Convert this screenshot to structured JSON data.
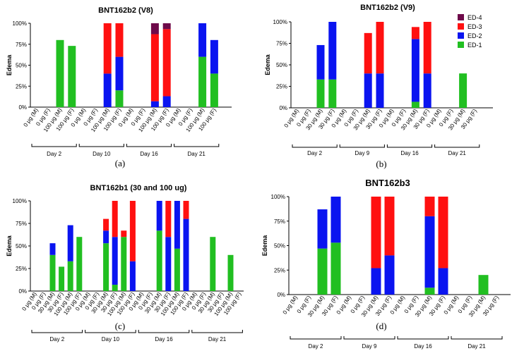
{
  "colors": {
    "ED-1": "#21bf21",
    "ED-2": "#0a14f0",
    "ED-3": "#ff1010",
    "ED-4": "#6e0a4a"
  },
  "chart_data": [
    {
      "type": "bar",
      "stacked": true,
      "title": "BNT162b2 (V8)",
      "ylabel": "Edema",
      "yticks": [
        "0%",
        "25%",
        "50%",
        "75%",
        "100%"
      ],
      "ylim": [
        0,
        100
      ],
      "categories": [
        "0 μg (M)",
        "0 μg (F)",
        "100 μg (M)",
        "100 μg (F)",
        "0 μg (M)",
        "0 μg (F)",
        "100 μg (M)",
        "100 μg (F)",
        "0 μg (M)",
        "0 μg (F)",
        "100 μg (M)",
        "100 μg (F)",
        "0 μg (M)",
        "0 μg (F)",
        "100 μg (M)",
        "100 μg (F)"
      ],
      "groups": [
        {
          "label": "Day 2",
          "start": 0,
          "end": 3
        },
        {
          "label": "Day 10",
          "start": 4,
          "end": 7
        },
        {
          "label": "Day 16",
          "start": 8,
          "end": 11
        },
        {
          "label": "Day 21",
          "start": 12,
          "end": 15
        }
      ],
      "series": [
        {
          "name": "ED-1",
          "values": [
            0,
            0,
            80,
            73,
            0,
            0,
            0,
            20,
            0,
            0,
            0,
            0,
            0,
            0,
            60,
            40
          ]
        },
        {
          "name": "ED-2",
          "values": [
            0,
            0,
            0,
            0,
            0,
            0,
            40,
            40,
            0,
            0,
            7,
            13,
            0,
            0,
            40,
            40
          ]
        },
        {
          "name": "ED-3",
          "values": [
            0,
            0,
            0,
            0,
            0,
            0,
            60,
            40,
            0,
            0,
            80,
            80,
            0,
            0,
            0,
            0
          ]
        },
        {
          "name": "ED-4",
          "values": [
            0,
            0,
            0,
            0,
            0,
            0,
            0,
            0,
            0,
            0,
            13,
            7,
            0,
            0,
            0,
            0
          ]
        }
      ],
      "caption": "(a)"
    },
    {
      "type": "bar",
      "stacked": true,
      "title": "BNT162b2 (V9)",
      "ylabel": "Edema",
      "yticks": [
        "0%",
        "25%",
        "50%",
        "75%",
        "100%"
      ],
      "ylim": [
        0,
        100
      ],
      "categories": [
        "0 μg (M)",
        "0 μg (F)",
        "30 μg (M)",
        "30 μg (F)",
        "0 μg (M)",
        "0 μg (F)",
        "30 μg (M)",
        "30 μg (F)",
        "0 μg (M)",
        "0 μg (F)",
        "30 μg (M)",
        "30 μg (F)",
        "0 μg (M)",
        "0 μg (F)",
        "30 μg (M)",
        "30 μg (F)"
      ],
      "groups": [
        {
          "label": "Day 2",
          "start": 0,
          "end": 3
        },
        {
          "label": "Day 9",
          "start": 4,
          "end": 7
        },
        {
          "label": "Day 16",
          "start": 8,
          "end": 11
        },
        {
          "label": "Day 21",
          "start": 12,
          "end": 15
        }
      ],
      "series": [
        {
          "name": "ED-1",
          "values": [
            0,
            0,
            33,
            33,
            0,
            0,
            0,
            0,
            0,
            0,
            7,
            0,
            0,
            0,
            40,
            0
          ]
        },
        {
          "name": "ED-2",
          "values": [
            0,
            0,
            40,
            67,
            0,
            0,
            40,
            40,
            0,
            0,
            73,
            40,
            0,
            0,
            0,
            0
          ]
        },
        {
          "name": "ED-3",
          "values": [
            0,
            0,
            0,
            0,
            0,
            0,
            47,
            60,
            0,
            0,
            14,
            60,
            0,
            0,
            0,
            0
          ]
        },
        {
          "name": "ED-4",
          "values": [
            0,
            0,
            0,
            0,
            0,
            0,
            0,
            0,
            0,
            0,
            0,
            0,
            0,
            0,
            0,
            0
          ]
        }
      ],
      "legend": [
        "ED-4",
        "ED-3",
        "ED-2",
        "ED-1"
      ],
      "caption": "(b)"
    },
    {
      "type": "bar",
      "stacked": true,
      "title": "BNT162b1 (30 and 100 ug)",
      "ylabel": "Edema",
      "yticks": [
        "0%",
        "25%",
        "50%",
        "75%",
        "100%"
      ],
      "ylim": [
        0,
        100
      ],
      "categories": [
        "0 μg (M)",
        "0 μg (F)",
        "30 μg (M)",
        "30 μg (F)",
        "100 μg (M)",
        "100 μg (F)",
        "0 μg (M)",
        "0 μg (F)",
        "30 μg (M)",
        "30 μg (F)",
        "100 μg (M)",
        "100 μg (F)",
        "0 μg (M)",
        "0 μg (F)",
        "30 μg (M)",
        "30 μg (F)",
        "100 μg (M)",
        "100 μg (F)",
        "0 μg (M)",
        "0 μg (F)",
        "30 μg (M)",
        "30 μg (F)",
        "100 μg (M)",
        "100 μg (F)"
      ],
      "groups": [
        {
          "label": "Day 2",
          "start": 0,
          "end": 5
        },
        {
          "label": "Day 10",
          "start": 6,
          "end": 11
        },
        {
          "label": "Day 16",
          "start": 12,
          "end": 17
        },
        {
          "label": "Day 21",
          "start": 18,
          "end": 23
        }
      ],
      "series": [
        {
          "name": "ED-1",
          "values": [
            0,
            0,
            40,
            27,
            33,
            60,
            0,
            0,
            53,
            7,
            60,
            0,
            0,
            0,
            67,
            0,
            47,
            0,
            0,
            0,
            60,
            0,
            40,
            0
          ]
        },
        {
          "name": "ED-2",
          "values": [
            0,
            0,
            13,
            0,
            40,
            0,
            0,
            0,
            14,
            53,
            0,
            33,
            0,
            0,
            33,
            60,
            53,
            80,
            0,
            0,
            0,
            0,
            0,
            0
          ]
        },
        {
          "name": "ED-3",
          "values": [
            0,
            0,
            0,
            0,
            0,
            0,
            0,
            0,
            13,
            40,
            7,
            67,
            0,
            0,
            0,
            40,
            0,
            20,
            0,
            0,
            0,
            0,
            0,
            0
          ]
        },
        {
          "name": "ED-4",
          "values": [
            0,
            0,
            0,
            0,
            0,
            0,
            0,
            0,
            0,
            0,
            0,
            0,
            0,
            0,
            0,
            0,
            0,
            0,
            0,
            0,
            0,
            0,
            0,
            0
          ]
        }
      ],
      "caption": "(c)"
    },
    {
      "type": "bar",
      "stacked": true,
      "title": "BNT162b3",
      "ylabel": "Edema",
      "yticks": [
        "0%",
        "25%",
        "50%",
        "75%",
        "100%"
      ],
      "ylim": [
        0,
        100
      ],
      "categories": [
        "0 μg (M)",
        "0 μg (F)",
        "30 μg (M)",
        "30 μg (F)",
        "0 μg (M)",
        "0 μg (F)",
        "30 μg (M)",
        "30 μg (F)",
        "0 μg (M)",
        "0 μg (F)",
        "30 μg (M)",
        "30 μg (F)",
        "0 μg (M)",
        "0 μg (F)",
        "30 μg (M)",
        "30 μg (F)"
      ],
      "groups": [
        {
          "label": "Day 2",
          "start": 0,
          "end": 3
        },
        {
          "label": "Day 9",
          "start": 4,
          "end": 7
        },
        {
          "label": "Day 16",
          "start": 8,
          "end": 11
        },
        {
          "label": "Day 21",
          "start": 12,
          "end": 15
        }
      ],
      "series": [
        {
          "name": "ED-1",
          "values": [
            0,
            0,
            47,
            53,
            0,
            0,
            0,
            0,
            0,
            0,
            7,
            0,
            0,
            0,
            20,
            0
          ]
        },
        {
          "name": "ED-2",
          "values": [
            0,
            0,
            40,
            47,
            0,
            0,
            27,
            40,
            0,
            0,
            73,
            27,
            0,
            0,
            0,
            0
          ]
        },
        {
          "name": "ED-3",
          "values": [
            0,
            0,
            0,
            0,
            0,
            0,
            73,
            60,
            0,
            0,
            20,
            73,
            0,
            0,
            0,
            0
          ]
        },
        {
          "name": "ED-4",
          "values": [
            0,
            0,
            0,
            0,
            0,
            0,
            0,
            0,
            0,
            0,
            0,
            0,
            0,
            0,
            0,
            0
          ]
        }
      ],
      "caption": "(d)"
    }
  ]
}
